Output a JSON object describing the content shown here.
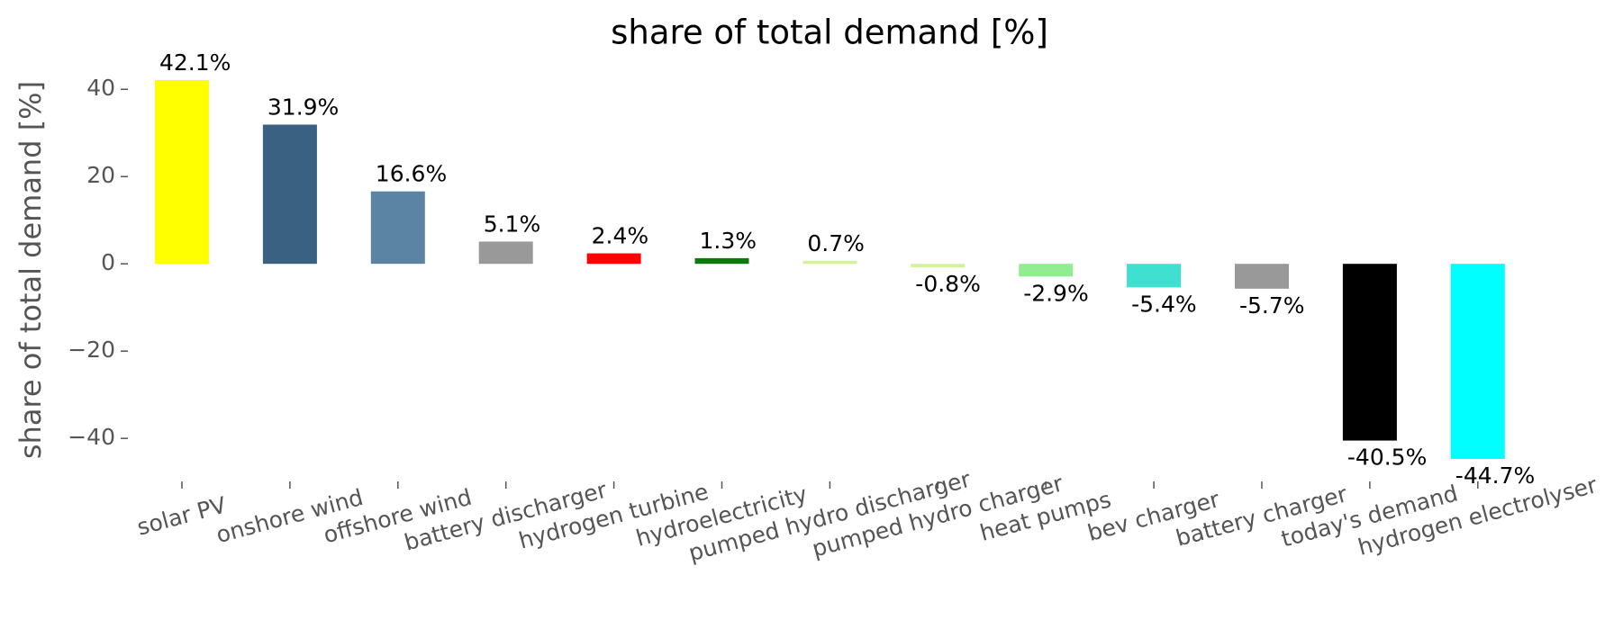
{
  "chart_data": {
    "type": "bar",
    "title": "share of total demand [%]",
    "y_label": "share of total demand [%]",
    "categories": [
      "solar PV",
      "onshore wind",
      "offshore wind",
      "battery discharger",
      "hydrogen turbine",
      "hydroelectricity",
      "pumped hydro discharger",
      "pumped hydro charger",
      "heat pumps",
      "bev charger",
      "battery charger",
      "today's demand",
      "hydrogen electrolyser"
    ],
    "values": [
      42.1,
      31.9,
      16.6,
      5.1,
      2.4,
      1.3,
      0.7,
      -0.8,
      -2.9,
      -5.4,
      -5.7,
      -40.5,
      -44.7
    ],
    "value_labels": [
      "42.1%",
      "31.9%",
      "16.6%",
      "5.1%",
      "2.4%",
      "1.3%",
      "0.7%",
      "-0.8%",
      "-2.9%",
      "-5.4%",
      "-5.7%",
      "-40.5%",
      "-44.7%"
    ],
    "colors": [
      "#ffff00",
      "#3b6182",
      "#5b84a4",
      "#999999",
      "#ff0000",
      "#0e7a0e",
      "#d2f2a0",
      "#d2f2a0",
      "#90ee90",
      "#40e0d0",
      "#999999",
      "#000000",
      "#00ffff"
    ],
    "ylim": [
      -49.04,
      46.44
    ],
    "yticks": [
      {
        "value": -40,
        "label": "−40"
      },
      {
        "value": -20,
        "label": "−20"
      },
      0,
      20,
      40
    ],
    "grid": false
  }
}
